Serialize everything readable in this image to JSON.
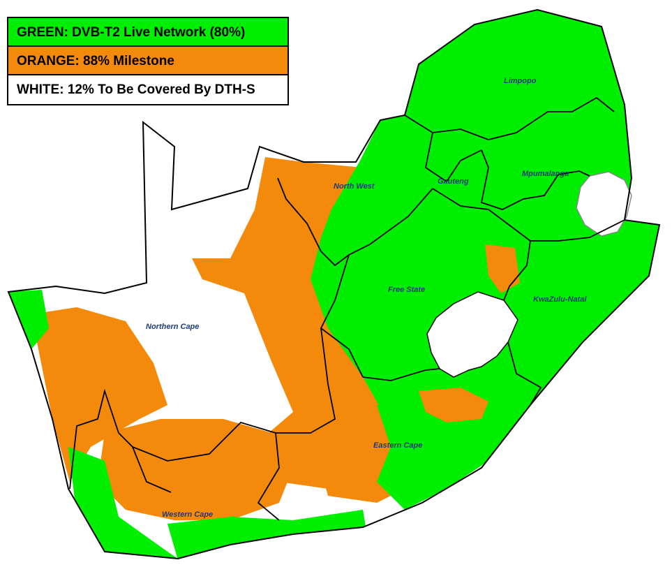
{
  "legend": [
    {
      "label": "GREEN: DVB-T2 Live Network (80%)",
      "color": "#00ee00"
    },
    {
      "label": "ORANGE: 88% Milestone",
      "color": "#f48a0c"
    },
    {
      "label": "WHITE: 12% To Be Covered By DTH-S",
      "color": "#ffffff"
    }
  ],
  "provinces": [
    {
      "name": "Limpopo"
    },
    {
      "name": "North West"
    },
    {
      "name": "Gauteng"
    },
    {
      "name": "Mpumalanga"
    },
    {
      "name": "Free State"
    },
    {
      "name": "KwaZulu-Natal"
    },
    {
      "name": "Northern Cape"
    },
    {
      "name": "Eastern Cape"
    },
    {
      "name": "Western Cape"
    }
  ],
  "colors": {
    "green": "#00ee00",
    "orange": "#f48a0c",
    "white": "#ffffff",
    "border": "#000000",
    "label": "#1f3a7a"
  }
}
